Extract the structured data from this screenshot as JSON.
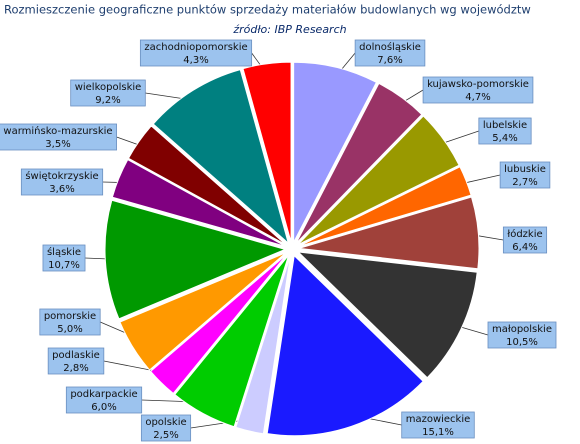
{
  "chart_data": {
    "type": "pie",
    "title": "Rozmieszczenie geograficzne punktów sprzedaży materiałów budowlanych wg województw",
    "subtitle": "źródło:  IBP Research",
    "categories": [
      "dolnośląskie",
      "kujawsko-pomorskie",
      "lubelskie",
      "lubuskie",
      "łódzkie",
      "małopolskie",
      "mazowieckie",
      "opolskie",
      "podkarpackie",
      "podlaskie",
      "pomorskie",
      "śląskie",
      "świętokrzyskie",
      "warmińsko-mazurskie",
      "wielkopolskie",
      "zachodniopomorskie"
    ],
    "values": [
      7.6,
      4.7,
      5.4,
      2.7,
      6.4,
      10.5,
      15.1,
      2.5,
      6.0,
      2.8,
      5.0,
      10.7,
      3.6,
      3.5,
      9.2,
      4.3
    ],
    "value_labels": [
      "7,6%",
      "4,7%",
      "5,4%",
      "2,7%",
      "6,4%",
      "10,5%",
      "15,1%",
      "2,5%",
      "6,0%",
      "2,8%",
      "5,0%",
      "10,7%",
      "3,6%",
      "3,5%",
      "9,2%",
      "4,3%"
    ],
    "colors": [
      "#9999ff",
      "#993366",
      "#999900",
      "#ff6600",
      "#a0413a",
      "#333333",
      "#1a1aff",
      "#ccccff",
      "#00cc00",
      "#ff00ff",
      "#ff9900",
      "#009900",
      "#800080",
      "#800000",
      "#008080",
      "#ff0000"
    ]
  }
}
